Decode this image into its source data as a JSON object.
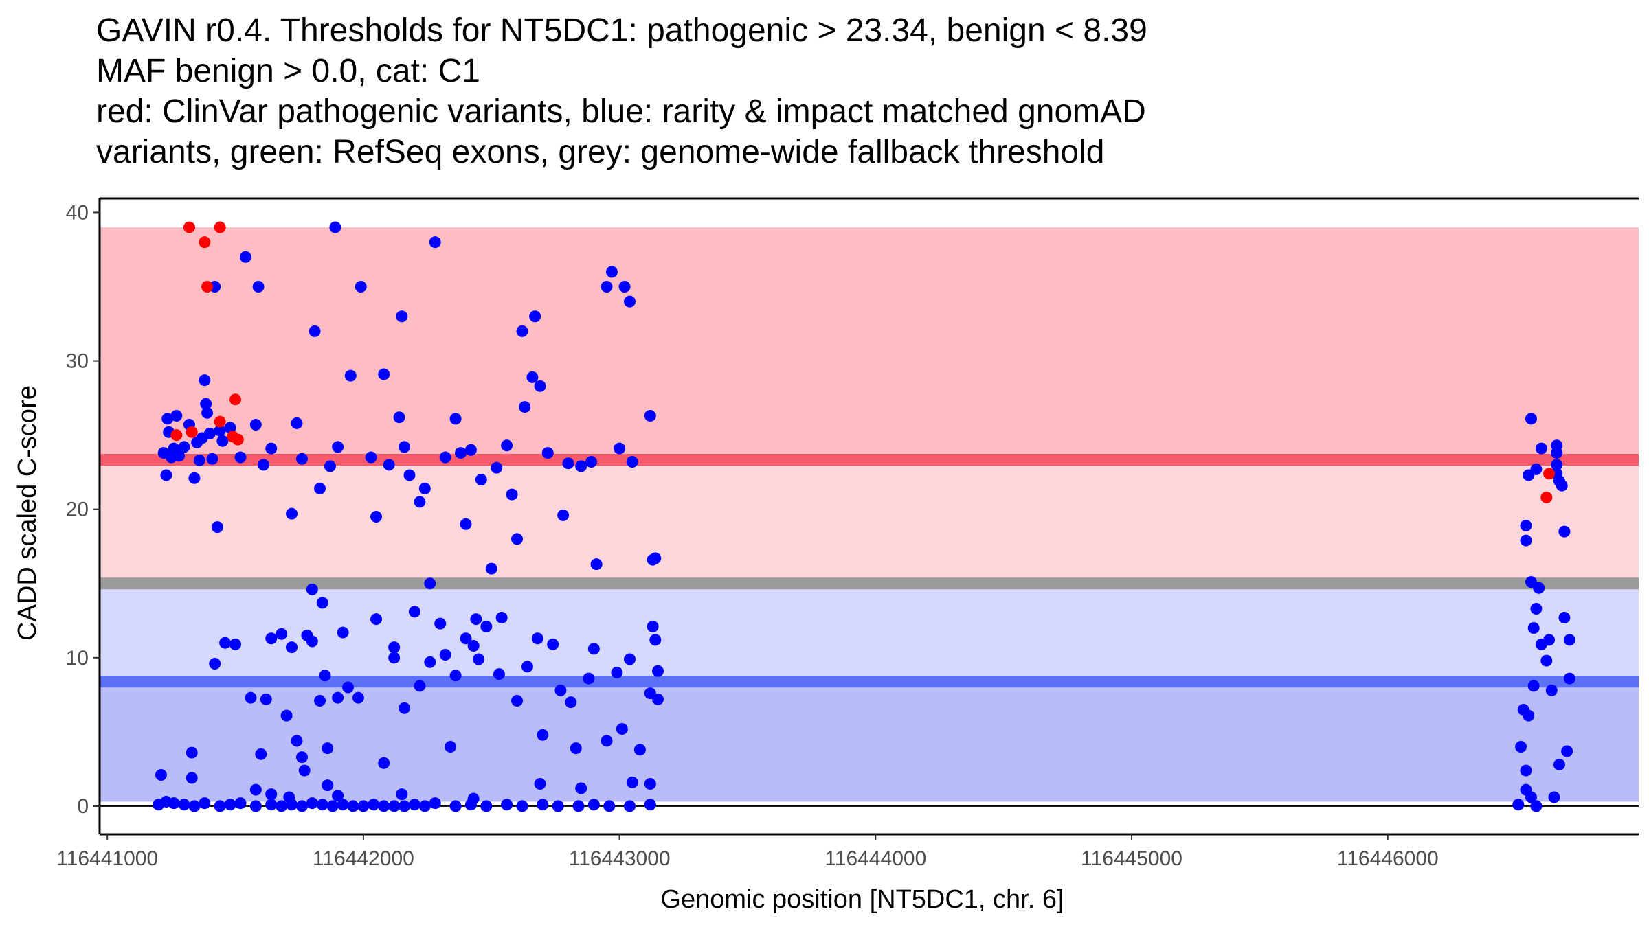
{
  "chart_data": {
    "type": "scatter",
    "title_lines": [
      "GAVIN r0.4. Thresholds for NT5DC1: pathogenic > 23.34, benign < 8.39",
      "MAF benign > 0.0, cat: C1",
      "red: ClinVar pathogenic variants, blue: rarity & impact matched gnomAD",
      "variants, green: RefSeq exons, grey: genome-wide fallback threshold"
    ],
    "xlabel": "Genomic position [NT5DC1, chr. 6]",
    "ylabel": "CADD scaled C-score",
    "xlim": [
      116440970,
      116446980
    ],
    "ylim": [
      -1.9,
      40.9
    ],
    "x_ticks": [
      116441000,
      116442000,
      116443000,
      116444000,
      116445000,
      116446000
    ],
    "y_ticks": [
      0,
      10,
      20,
      30,
      40
    ],
    "colors": {
      "pathogenic_band": "#fdbdc3",
      "intermediate_band": "#fdd6db",
      "benign_band_upper": "#d6d8fd",
      "benign_band_lower": "#b9bcf8",
      "pathogenic_line": "#f65a6c",
      "benign_line": "#5a71f5",
      "fallback_line": "#9a9a9a",
      "gnomad_points": "#0000ff",
      "clinvar_points": "#ff0000"
    },
    "bands": [
      {
        "name": "pathogenic",
        "y0": 23.34,
        "y1": 39
      },
      {
        "name": "intermediate",
        "y0": 15.3,
        "y1": 23.34
      },
      {
        "name": "benign-upper",
        "y0": 8.39,
        "y1": 14.7
      },
      {
        "name": "benign-lower",
        "y0": 0.3,
        "y1": 8.39
      }
    ],
    "thresholds": {
      "pathogenic": 23.34,
      "fallback": 15.0,
      "benign": 8.39
    },
    "series": [
      {
        "name": "rarity & impact matched gnomAD variants",
        "color": "blue",
        "points": [
          [
            116441210,
            2.1
          ],
          [
            116441220,
            23.8
          ],
          [
            116441230,
            22.3
          ],
          [
            116441235,
            26.1
          ],
          [
            116441240,
            25.2
          ],
          [
            116441250,
            23.5
          ],
          [
            116441260,
            24.1
          ],
          [
            116441270,
            26.3
          ],
          [
            116441280,
            23.6
          ],
          [
            116441300,
            24.2
          ],
          [
            116441320,
            25.7
          ],
          [
            116441330,
            3.6
          ],
          [
            116441340,
            22.1
          ],
          [
            116441350,
            24.5
          ],
          [
            116441360,
            23.3
          ],
          [
            116441370,
            24.8
          ],
          [
            116441380,
            28.7
          ],
          [
            116441385,
            27.1
          ],
          [
            116441390,
            26.5
          ],
          [
            116441400,
            25.1
          ],
          [
            116441410,
            23.4
          ],
          [
            116441420,
            35.0
          ],
          [
            116441430,
            18.8
          ],
          [
            116441440,
            25.3
          ],
          [
            116441450,
            24.6
          ],
          [
            116441460,
            11.0
          ],
          [
            116441480,
            25.5
          ],
          [
            116441500,
            10.9
          ],
          [
            116441520,
            23.5
          ],
          [
            116441540,
            37.0
          ],
          [
            116441560,
            7.3
          ],
          [
            116441580,
            25.7
          ],
          [
            116441590,
            35.0
          ],
          [
            116441600,
            3.5
          ],
          [
            116441610,
            23.0
          ],
          [
            116441620,
            7.2
          ],
          [
            116441640,
            24.1
          ],
          [
            116441680,
            11.6
          ],
          [
            116441700,
            6.1
          ],
          [
            116441720,
            19.7
          ],
          [
            116441740,
            25.8
          ],
          [
            116441760,
            23.4
          ],
          [
            116441780,
            11.5
          ],
          [
            116441800,
            14.6
          ],
          [
            116441810,
            32.0
          ],
          [
            116441830,
            21.4
          ],
          [
            116441840,
            13.7
          ],
          [
            116441850,
            8.8
          ],
          [
            116441870,
            22.9
          ],
          [
            116441890,
            39.0
          ],
          [
            116441900,
            24.2
          ],
          [
            116441920,
            11.7
          ],
          [
            116441950,
            29.0
          ],
          [
            116441990,
            35.0
          ],
          [
            116442030,
            23.5
          ],
          [
            116442050,
            19.5
          ],
          [
            116442080,
            29.1
          ],
          [
            116442100,
            23.0
          ],
          [
            116442120,
            10.7
          ],
          [
            116442140,
            26.2
          ],
          [
            116442150,
            33.0
          ],
          [
            116442160,
            24.2
          ],
          [
            116442180,
            22.3
          ],
          [
            116442200,
            13.1
          ],
          [
            116442220,
            20.5
          ],
          [
            116442240,
            21.4
          ],
          [
            116442260,
            15.0
          ],
          [
            116442280,
            38.0
          ],
          [
            116442300,
            12.3
          ],
          [
            116442320,
            23.5
          ],
          [
            116442340,
            4.0
          ],
          [
            116442360,
            26.1
          ],
          [
            116442380,
            23.8
          ],
          [
            116442400,
            19.0
          ],
          [
            116442420,
            24.0
          ],
          [
            116442440,
            12.6
          ],
          [
            116442460,
            22.0
          ],
          [
            116442480,
            12.1
          ],
          [
            116442500,
            16.0
          ],
          [
            116442520,
            22.8
          ],
          [
            116442540,
            12.7
          ],
          [
            116442560,
            24.3
          ],
          [
            116442580,
            21.0
          ],
          [
            116442600,
            18.0
          ],
          [
            116442620,
            32.0
          ],
          [
            116442630,
            26.9
          ],
          [
            116442660,
            28.9
          ],
          [
            116442670,
            33.0
          ],
          [
            116442690,
            28.3
          ],
          [
            116442720,
            23.8
          ],
          [
            116442780,
            19.6
          ],
          [
            116442800,
            23.1
          ],
          [
            116442850,
            22.9
          ],
          [
            116442890,
            23.2
          ],
          [
            116442910,
            16.3
          ],
          [
            116442950,
            35.0
          ],
          [
            116442970,
            36.0
          ],
          [
            116443000,
            24.1
          ],
          [
            116443020,
            35.0
          ],
          [
            116443040,
            34.0
          ],
          [
            116443050,
            23.2
          ],
          [
            116443120,
            26.3
          ],
          [
            116443130,
            16.6
          ],
          [
            116443140,
            16.7
          ],
          [
            116443150,
            9.1
          ],
          [
            116443150,
            7.2
          ],
          [
            116441200,
            0.1
          ],
          [
            116441230,
            0.3
          ],
          [
            116441260,
            0.2
          ],
          [
            116441300,
            0.1
          ],
          [
            116441340,
            0.0
          ],
          [
            116441380,
            0.2
          ],
          [
            116441440,
            0.0
          ],
          [
            116441480,
            0.1
          ],
          [
            116441520,
            0.2
          ],
          [
            116441580,
            0.0
          ],
          [
            116441640,
            0.1
          ],
          [
            116441680,
            0.0
          ],
          [
            116441720,
            0.1
          ],
          [
            116441760,
            0.0
          ],
          [
            116441800,
            0.2
          ],
          [
            116441840,
            0.1
          ],
          [
            116441880,
            0.0
          ],
          [
            116441920,
            0.1
          ],
          [
            116441960,
            0.0
          ],
          [
            116442000,
            0.0
          ],
          [
            116442040,
            0.1
          ],
          [
            116442080,
            0.0
          ],
          [
            116442120,
            0.0
          ],
          [
            116442160,
            0.0
          ],
          [
            116442200,
            0.1
          ],
          [
            116442240,
            0.0
          ],
          [
            116442280,
            0.2
          ],
          [
            116442360,
            0.0
          ],
          [
            116442420,
            0.1
          ],
          [
            116442480,
            0.0
          ],
          [
            116442560,
            0.1
          ],
          [
            116442620,
            0.0
          ],
          [
            116442700,
            0.1
          ],
          [
            116442760,
            0.0
          ],
          [
            116442840,
            0.0
          ],
          [
            116442900,
            0.1
          ],
          [
            116442960,
            0.0
          ],
          [
            116443040,
            0.0
          ],
          [
            116443120,
            0.1
          ],
          [
            116441330,
            1.9
          ],
          [
            116441580,
            1.1
          ],
          [
            116441640,
            0.8
          ],
          [
            116441710,
            0.6
          ],
          [
            116441770,
            2.4
          ],
          [
            116441860,
            1.4
          ],
          [
            116441900,
            0.7
          ],
          [
            116442080,
            2.9
          ],
          [
            116442150,
            0.8
          ],
          [
            116442430,
            0.5
          ],
          [
            116442690,
            1.5
          ],
          [
            116442850,
            1.2
          ],
          [
            116443050,
            1.6
          ],
          [
            116443120,
            1.5
          ],
          [
            116441420,
            9.6
          ],
          [
            116441640,
            11.3
          ],
          [
            116441720,
            10.7
          ],
          [
            116441740,
            4.4
          ],
          [
            116441760,
            3.3
          ],
          [
            116441800,
            11.1
          ],
          [
            116441830,
            7.1
          ],
          [
            116441860,
            3.9
          ],
          [
            116441900,
            7.3
          ],
          [
            116441940,
            8.0
          ],
          [
            116441980,
            7.3
          ],
          [
            116442050,
            12.6
          ],
          [
            116442120,
            10.0
          ],
          [
            116442160,
            6.6
          ],
          [
            116442220,
            8.1
          ],
          [
            116442260,
            9.7
          ],
          [
            116442320,
            10.2
          ],
          [
            116442360,
            8.8
          ],
          [
            116442400,
            11.3
          ],
          [
            116442430,
            10.8
          ],
          [
            116442450,
            9.9
          ],
          [
            116442530,
            8.9
          ],
          [
            116442600,
            7.1
          ],
          [
            116442640,
            9.4
          ],
          [
            116442680,
            11.3
          ],
          [
            116442700,
            4.8
          ],
          [
            116442740,
            10.9
          ],
          [
            116442770,
            7.8
          ],
          [
            116442810,
            7.0
          ],
          [
            116442830,
            3.9
          ],
          [
            116442880,
            8.6
          ],
          [
            116442900,
            10.6
          ],
          [
            116442950,
            4.4
          ],
          [
            116442990,
            9.0
          ],
          [
            116443010,
            5.2
          ],
          [
            116443040,
            9.9
          ],
          [
            116443080,
            3.8
          ],
          [
            116443120,
            7.6
          ],
          [
            116443130,
            12.1
          ],
          [
            116443140,
            11.2
          ]
        ]
      },
      {
        "name": "ClinVar pathogenic variants",
        "color": "red",
        "points": [
          [
            116441320,
            39.0
          ],
          [
            116441440,
            39.0
          ],
          [
            116441380,
            38.0
          ],
          [
            116441390,
            35.0
          ],
          [
            116441270,
            25.0
          ],
          [
            116441330,
            25.2
          ],
          [
            116441440,
            25.9
          ],
          [
            116441490,
            24.9
          ],
          [
            116441510,
            24.7
          ],
          [
            116441500,
            27.4
          ]
        ]
      },
      {
        "name": "rarity & impact matched gnomAD variants (exon 2)",
        "color": "blue",
        "points": [
          [
            116446560,
            26.1
          ],
          [
            116446540,
            18.9
          ],
          [
            116446540,
            17.9
          ],
          [
            116446550,
            22.3
          ],
          [
            116446560,
            15.1
          ],
          [
            116446570,
            12.0
          ],
          [
            116446580,
            13.3
          ],
          [
            116446590,
            14.7
          ],
          [
            116446580,
            22.7
          ],
          [
            116446600,
            24.1
          ],
          [
            116446600,
            10.9
          ],
          [
            116446620,
            9.8
          ],
          [
            116446630,
            11.2
          ],
          [
            116446640,
            7.8
          ],
          [
            116446660,
            24.3
          ],
          [
            116446660,
            23.8
          ],
          [
            116446660,
            23.0
          ],
          [
            116446660,
            22.4
          ],
          [
            116446670,
            21.9
          ],
          [
            116446680,
            21.6
          ],
          [
            116446690,
            12.7
          ],
          [
            116446690,
            18.5
          ],
          [
            116446710,
            11.2
          ],
          [
            116446710,
            8.6
          ],
          [
            116446700,
            3.7
          ],
          [
            116446670,
            2.8
          ],
          [
            116446520,
            4.0
          ],
          [
            116446530,
            6.5
          ],
          [
            116446550,
            6.1
          ],
          [
            116446540,
            2.4
          ],
          [
            116446560,
            0.6
          ],
          [
            116446580,
            0.0
          ],
          [
            116446510,
            0.1
          ],
          [
            116446540,
            1.1
          ],
          [
            116446650,
            0.6
          ],
          [
            116446570,
            8.1
          ]
        ]
      },
      {
        "name": "ClinVar pathogenic variants (exon 2)",
        "color": "red",
        "points": [
          [
            116446630,
            22.4
          ],
          [
            116446620,
            20.8
          ]
        ]
      }
    ]
  }
}
